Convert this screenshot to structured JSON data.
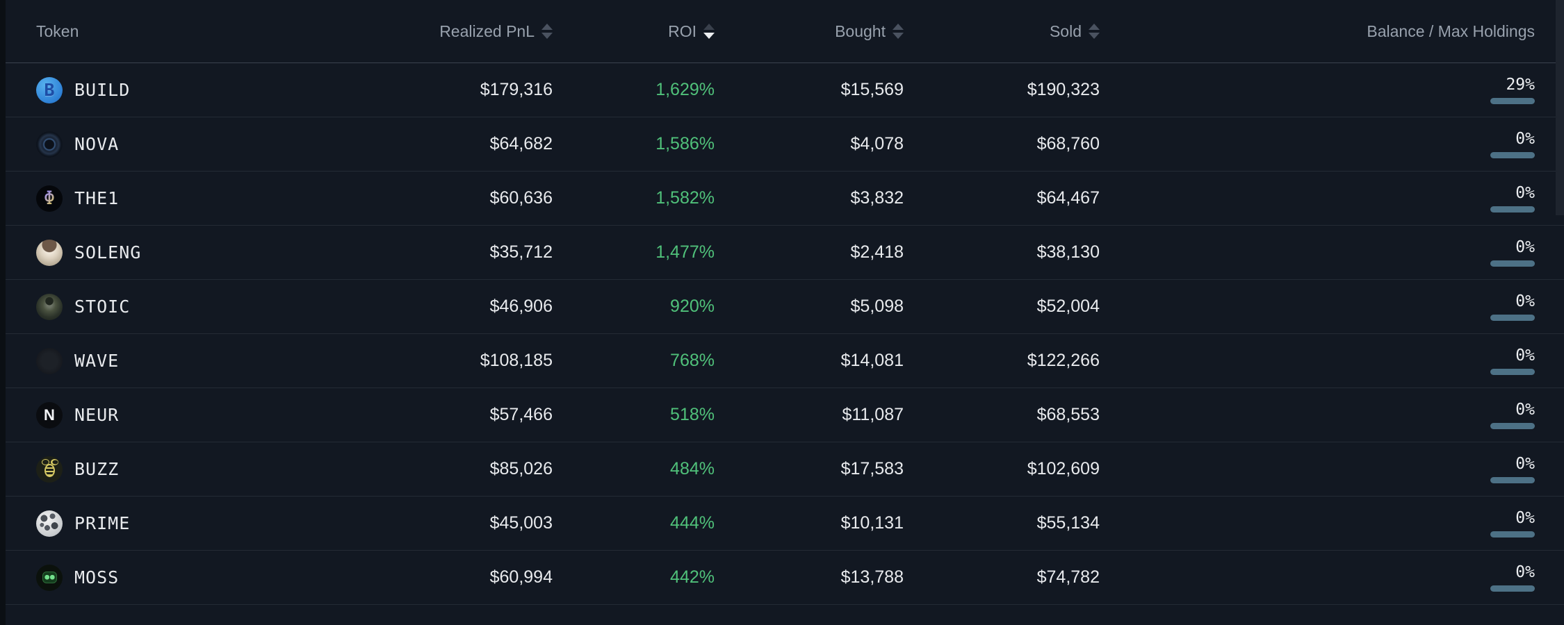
{
  "table": {
    "columns": [
      {
        "label": "Token",
        "align": "left",
        "sortable": false,
        "sort": "none"
      },
      {
        "label": "Realized PnL",
        "align": "right",
        "sortable": true,
        "sort": "none"
      },
      {
        "label": "ROI",
        "align": "right",
        "sortable": true,
        "sort": "desc"
      },
      {
        "label": "Bought",
        "align": "right",
        "sortable": true,
        "sort": "none"
      },
      {
        "label": "Sold",
        "align": "right",
        "sortable": true,
        "sort": "none"
      },
      {
        "label": "Balance / Max Holdings",
        "align": "right",
        "sortable": false,
        "sort": "none"
      }
    ],
    "rows": [
      {
        "token": "BUILD",
        "icon": "build-token-icon",
        "icon_glyph": "B",
        "realized_pnl": "$179,316",
        "roi": "1,629%",
        "bought": "$15,569",
        "sold": "$190,323",
        "balance_pct": "29%",
        "balance_fill": 29
      },
      {
        "token": "NOVA",
        "icon": "nova-token-icon",
        "icon_glyph": "",
        "realized_pnl": "$64,682",
        "roi": "1,586%",
        "bought": "$4,078",
        "sold": "$68,760",
        "balance_pct": "0%",
        "balance_fill": 0
      },
      {
        "token": "THE1",
        "icon": "the1-token-icon",
        "icon_glyph": "Φ",
        "realized_pnl": "$60,636",
        "roi": "1,582%",
        "bought": "$3,832",
        "sold": "$64,467",
        "balance_pct": "0%",
        "balance_fill": 0
      },
      {
        "token": "SOLENG",
        "icon": "soleng-token-icon",
        "icon_glyph": "",
        "realized_pnl": "$35,712",
        "roi": "1,477%",
        "bought": "$2,418",
        "sold": "$38,130",
        "balance_pct": "0%",
        "balance_fill": 0
      },
      {
        "token": "STOIC",
        "icon": "stoic-token-icon",
        "icon_glyph": "",
        "realized_pnl": "$46,906",
        "roi": "920%",
        "bought": "$5,098",
        "sold": "$52,004",
        "balance_pct": "0%",
        "balance_fill": 0
      },
      {
        "token": "WAVE",
        "icon": "wave-token-icon",
        "icon_glyph": "",
        "realized_pnl": "$108,185",
        "roi": "768%",
        "bought": "$14,081",
        "sold": "$122,266",
        "balance_pct": "0%",
        "balance_fill": 0
      },
      {
        "token": "NEUR",
        "icon": "neur-token-icon",
        "icon_glyph": "N",
        "realized_pnl": "$57,466",
        "roi": "518%",
        "bought": "$11,087",
        "sold": "$68,553",
        "balance_pct": "0%",
        "balance_fill": 0
      },
      {
        "token": "BUZZ",
        "icon": "buzz-token-icon",
        "icon_glyph": "",
        "realized_pnl": "$85,026",
        "roi": "484%",
        "bought": "$17,583",
        "sold": "$102,609",
        "balance_pct": "0%",
        "balance_fill": 0
      },
      {
        "token": "PRIME",
        "icon": "prime-token-icon",
        "icon_glyph": "",
        "realized_pnl": "$45,003",
        "roi": "444%",
        "bought": "$10,131",
        "sold": "$55,134",
        "balance_pct": "0%",
        "balance_fill": 0
      },
      {
        "token": "MOSS",
        "icon": "moss-token-icon",
        "icon_glyph": "",
        "realized_pnl": "$60,994",
        "roi": "442%",
        "bought": "$13,788",
        "sold": "$74,782",
        "balance_pct": "0%",
        "balance_fill": 0
      }
    ],
    "colors": {
      "background": "#121822",
      "row_divider": "#242b35",
      "header_divider": "#3b434f",
      "header_text": "#98a1ad",
      "value_text": "#e8eaed",
      "roi_green": "#50c17a",
      "bar_track_blue": "#4d7186",
      "bar_fill_blue": "#7fc9ee"
    }
  }
}
